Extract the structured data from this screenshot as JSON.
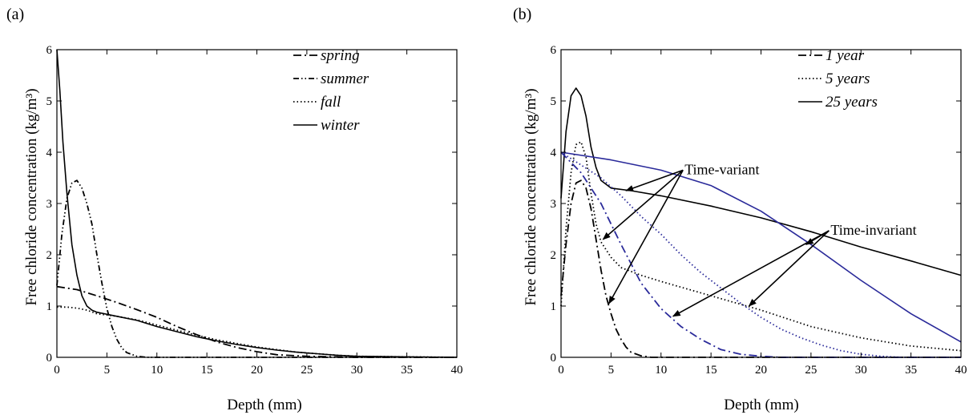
{
  "chart_data": [
    {
      "type": "line",
      "panel_label": "(a)",
      "xlabel": "Depth (mm)",
      "ylabel": "Free chloride concentration (kg/m³)",
      "xlim": [
        0,
        40
      ],
      "ylim": [
        0,
        6
      ],
      "xticks": [
        0,
        5,
        10,
        15,
        20,
        25,
        30,
        35,
        40
      ],
      "yticks": [
        0,
        1,
        2,
        3,
        4,
        5,
        6
      ],
      "grid": false,
      "legend_position": "top-right",
      "series": [
        {
          "name": "spring",
          "color": "#000000",
          "dash": "longdash-dot",
          "points": [
            [
              0,
              1.38
            ],
            [
              2,
              1.32
            ],
            [
              4,
              1.2
            ],
            [
              6,
              1.07
            ],
            [
              8,
              0.93
            ],
            [
              10,
              0.78
            ],
            [
              12,
              0.6
            ],
            [
              14,
              0.44
            ],
            [
              16,
              0.3
            ],
            [
              18,
              0.19
            ],
            [
              20,
              0.11
            ],
            [
              22,
              0.05
            ],
            [
              25,
              0.02
            ],
            [
              30,
              0.0
            ],
            [
              40,
              0.0
            ]
          ]
        },
        {
          "name": "summer",
          "color": "#000000",
          "dash": "dash-dot-dot",
          "points": [
            [
              0,
              1.4
            ],
            [
              0.5,
              2.4
            ],
            [
              1,
              3.1
            ],
            [
              1.5,
              3.4
            ],
            [
              2,
              3.45
            ],
            [
              2.5,
              3.3
            ],
            [
              3,
              3.0
            ],
            [
              3.5,
              2.6
            ],
            [
              4,
              2.0
            ],
            [
              4.5,
              1.45
            ],
            [
              5,
              0.95
            ],
            [
              5.5,
              0.6
            ],
            [
              6,
              0.35
            ],
            [
              6.5,
              0.18
            ],
            [
              7,
              0.09
            ],
            [
              8,
              0.02
            ],
            [
              9,
              0.0
            ],
            [
              40,
              0.0
            ]
          ]
        },
        {
          "name": "fall",
          "color": "#000000",
          "dash": "dot",
          "points": [
            [
              0,
              0.98
            ],
            [
              1,
              0.98
            ],
            [
              2,
              0.96
            ],
            [
              3,
              0.92
            ],
            [
              4,
              0.85
            ],
            [
              6,
              0.8
            ],
            [
              8,
              0.73
            ],
            [
              10,
              0.63
            ],
            [
              12,
              0.53
            ],
            [
              14,
              0.43
            ],
            [
              16,
              0.34
            ],
            [
              18,
              0.27
            ],
            [
              20,
              0.2
            ],
            [
              22,
              0.15
            ],
            [
              24,
              0.1
            ],
            [
              26,
              0.07
            ],
            [
              28,
              0.04
            ],
            [
              30,
              0.02
            ],
            [
              35,
              0.01
            ],
            [
              40,
              0.0
            ]
          ]
        },
        {
          "name": "winter",
          "color": "#000000",
          "dash": "solid",
          "points": [
            [
              0,
              6.0
            ],
            [
              0.3,
              5.2
            ],
            [
              0.6,
              4.2
            ],
            [
              1,
              3.2
            ],
            [
              1.5,
              2.2
            ],
            [
              2,
              1.6
            ],
            [
              2.5,
              1.2
            ],
            [
              3,
              1.0
            ],
            [
              3.5,
              0.92
            ],
            [
              4,
              0.88
            ],
            [
              6,
              0.8
            ],
            [
              8,
              0.72
            ],
            [
              10,
              0.6
            ],
            [
              12,
              0.5
            ],
            [
              14,
              0.4
            ],
            [
              16,
              0.32
            ],
            [
              18,
              0.25
            ],
            [
              20,
              0.19
            ],
            [
              22,
              0.14
            ],
            [
              24,
              0.1
            ],
            [
              26,
              0.07
            ],
            [
              28,
              0.04
            ],
            [
              30,
              0.02
            ],
            [
              35,
              0.01
            ],
            [
              40,
              0.0
            ]
          ]
        }
      ]
    },
    {
      "type": "line",
      "panel_label": "(b)",
      "xlabel": "Depth (mm)",
      "ylabel": "Free chloride concentration (kg/m³)",
      "xlim": [
        0,
        40
      ],
      "ylim": [
        0,
        6
      ],
      "xticks": [
        0,
        5,
        10,
        15,
        20,
        25,
        30,
        35,
        40
      ],
      "yticks": [
        0,
        1,
        2,
        3,
        4,
        5,
        6
      ],
      "grid": false,
      "legend_position": "top-right",
      "series": [
        {
          "name": "1 year",
          "color": "#000000",
          "dash": "longdash-dot",
          "legend": true,
          "points": [
            [
              0,
              1.2
            ],
            [
              0.5,
              2.2
            ],
            [
              1,
              3.0
            ],
            [
              1.5,
              3.4
            ],
            [
              2,
              3.45
            ],
            [
              2.5,
              3.3
            ],
            [
              3,
              2.9
            ],
            [
              3.5,
              2.3
            ],
            [
              4,
              1.7
            ],
            [
              4.5,
              1.2
            ],
            [
              5,
              0.85
            ],
            [
              5.5,
              0.55
            ],
            [
              6,
              0.35
            ],
            [
              6.5,
              0.2
            ],
            [
              7,
              0.1
            ],
            [
              8,
              0.03
            ],
            [
              9,
              0.0
            ],
            [
              40,
              0.0
            ]
          ]
        },
        {
          "name": "5 years",
          "color": "#000000",
          "dash": "dot",
          "legend": true,
          "points": [
            [
              0,
              1.0
            ],
            [
              0.5,
              2.5
            ],
            [
              1,
              3.6
            ],
            [
              1.5,
              4.15
            ],
            [
              2,
              4.2
            ],
            [
              2.5,
              3.9
            ],
            [
              3,
              3.2
            ],
            [
              3.5,
              2.6
            ],
            [
              4,
              2.25
            ],
            [
              5,
              1.95
            ],
            [
              6,
              1.75
            ],
            [
              8,
              1.6
            ],
            [
              10,
              1.48
            ],
            [
              15,
              1.2
            ],
            [
              20,
              0.92
            ],
            [
              25,
              0.6
            ],
            [
              30,
              0.38
            ],
            [
              35,
              0.22
            ],
            [
              40,
              0.13
            ]
          ]
        },
        {
          "name": "25 years",
          "color": "#000000",
          "dash": "solid",
          "legend": true,
          "points": [
            [
              0,
              3.1
            ],
            [
              0.5,
              4.4
            ],
            [
              1,
              5.1
            ],
            [
              1.5,
              5.25
            ],
            [
              2,
              5.1
            ],
            [
              2.5,
              4.7
            ],
            [
              3,
              4.1
            ],
            [
              3.5,
              3.7
            ],
            [
              4,
              3.45
            ],
            [
              5,
              3.3
            ],
            [
              7,
              3.25
            ],
            [
              10,
              3.15
            ],
            [
              15,
              2.95
            ],
            [
              20,
              2.72
            ],
            [
              25,
              2.45
            ],
            [
              30,
              2.15
            ],
            [
              35,
              1.88
            ],
            [
              40,
              1.6
            ]
          ]
        },
        {
          "name": "",
          "color": "#2a2a9a",
          "dash": "longdash-dot",
          "legend": false,
          "points": [
            [
              0,
              4.0
            ],
            [
              2,
              3.6
            ],
            [
              4,
              3.0
            ],
            [
              6,
              2.2
            ],
            [
              8,
              1.45
            ],
            [
              10,
              0.95
            ],
            [
              12,
              0.6
            ],
            [
              14,
              0.35
            ],
            [
              16,
              0.15
            ],
            [
              18,
              0.06
            ],
            [
              20,
              0.02
            ],
            [
              22,
              0.0
            ],
            [
              40,
              0.0
            ]
          ]
        },
        {
          "name": "",
          "color": "#2a2a9a",
          "dash": "dot",
          "legend": false,
          "points": [
            [
              0,
              4.0
            ],
            [
              2,
              3.75
            ],
            [
              4,
              3.5
            ],
            [
              6,
              3.15
            ],
            [
              8,
              2.75
            ],
            [
              10,
              2.4
            ],
            [
              12,
              2.0
            ],
            [
              14,
              1.65
            ],
            [
              16,
              1.35
            ],
            [
              18,
              1.05
            ],
            [
              20,
              0.78
            ],
            [
              22,
              0.55
            ],
            [
              24,
              0.38
            ],
            [
              26,
              0.24
            ],
            [
              28,
              0.13
            ],
            [
              30,
              0.06
            ],
            [
              32,
              0.02
            ],
            [
              34,
              0.0
            ],
            [
              40,
              0.0
            ]
          ]
        },
        {
          "name": "",
          "color": "#2a2a9a",
          "dash": "solid",
          "legend": false,
          "points": [
            [
              0,
              4.0
            ],
            [
              5,
              3.85
            ],
            [
              10,
              3.65
            ],
            [
              15,
              3.35
            ],
            [
              20,
              2.85
            ],
            [
              25,
              2.2
            ],
            [
              30,
              1.5
            ],
            [
              35,
              0.85
            ],
            [
              40,
              0.3
            ]
          ]
        }
      ],
      "annotations": [
        {
          "text": "Time-variant",
          "anchor": [
            12.2,
            3.65
          ],
          "arrows_to": [
            [
              6.5,
              3.25
            ],
            [
              4.2,
              2.3
            ],
            [
              4.8,
              1.05
            ]
          ]
        },
        {
          "text": "Time-invariant",
          "anchor": [
            26.8,
            2.47
          ],
          "arrows_to": [
            [
              24.5,
              2.2
            ],
            [
              18.8,
              1.0
            ],
            [
              11.2,
              0.8
            ]
          ]
        }
      ]
    }
  ]
}
